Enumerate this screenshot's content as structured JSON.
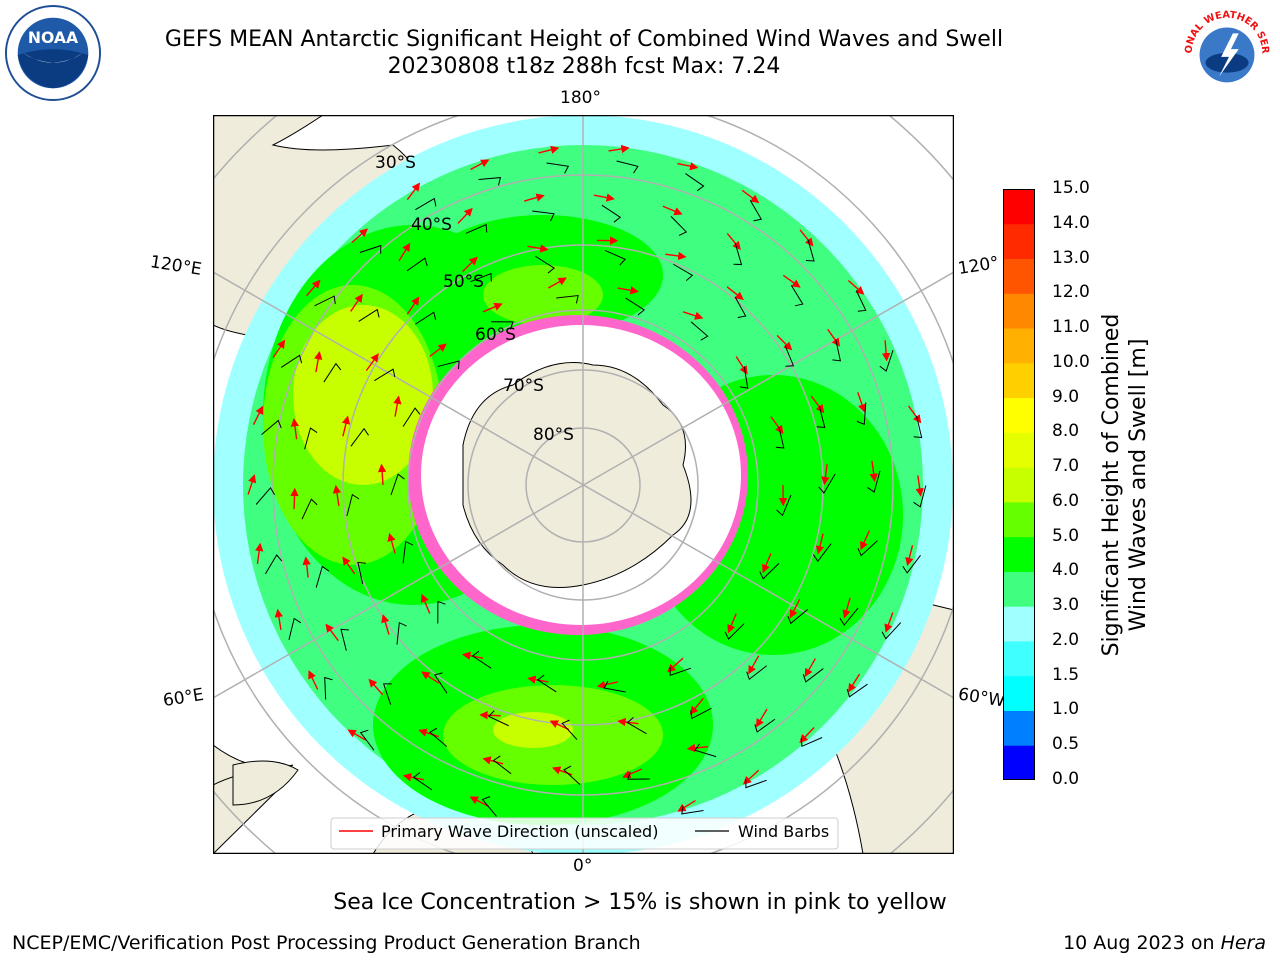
{
  "title": {
    "line1": "GEFS MEAN Antarctic Significant Height of Combined Wind Waves and Swell",
    "line2": "20230808 t18z 288h fcst   Max: 7.24"
  },
  "map": {
    "projection": "south-polar-stereographic",
    "longitude_labels": [
      "180°",
      "120°E",
      "120°",
      "60°E",
      "60°W",
      "0°"
    ],
    "latitude_labels": [
      "30°S",
      "40°S",
      "50°S",
      "60°S",
      "70°S",
      "80°S"
    ],
    "legend": {
      "wave_direction": "Primary Wave Direction (unscaled)",
      "wind_barbs": "Wind Barbs"
    },
    "colors": {
      "land": "#efecdc",
      "wave_arrow": "#ff0000",
      "barb": "#000000",
      "graticule": "#b0b0b0"
    }
  },
  "colorbar": {
    "label": "Significant Height of Combined Wind Waves and Swell [m]",
    "label_line1": "Significant Height of Combined",
    "label_line2": "Wind Waves and Swell [m]",
    "ticks": [
      "15.0",
      "14.0",
      "13.0",
      "12.0",
      "11.0",
      "10.0",
      "9.0",
      "8.0",
      "7.0",
      "6.0",
      "5.0",
      "4.0",
      "3.0",
      "2.0",
      "1.5",
      "1.0",
      "0.5",
      "0.0"
    ],
    "colors_bottom_to_top": [
      "#0000ff",
      "#0080ff",
      "#00ffff",
      "#40ffff",
      "#a0ffff",
      "#40ff80",
      "#00ff00",
      "#66ff00",
      "#c8ff00",
      "#e6ff00",
      "#ffff00",
      "#ffd000",
      "#ffb000",
      "#ff8800",
      "#ff5500",
      "#ff2a00",
      "#ff0000"
    ]
  },
  "footnote": "Sea Ice Concentration > 15% is shown in pink to yellow",
  "credit": "NCEP/EMC/Verification Post Processing Product Generation Branch",
  "date_stamp": {
    "date": "10 Aug 2023 on ",
    "machine": "Hera"
  },
  "logos": {
    "noaa": "NOAA",
    "nws": "NATIONAL WEATHER SERVICE"
  }
}
